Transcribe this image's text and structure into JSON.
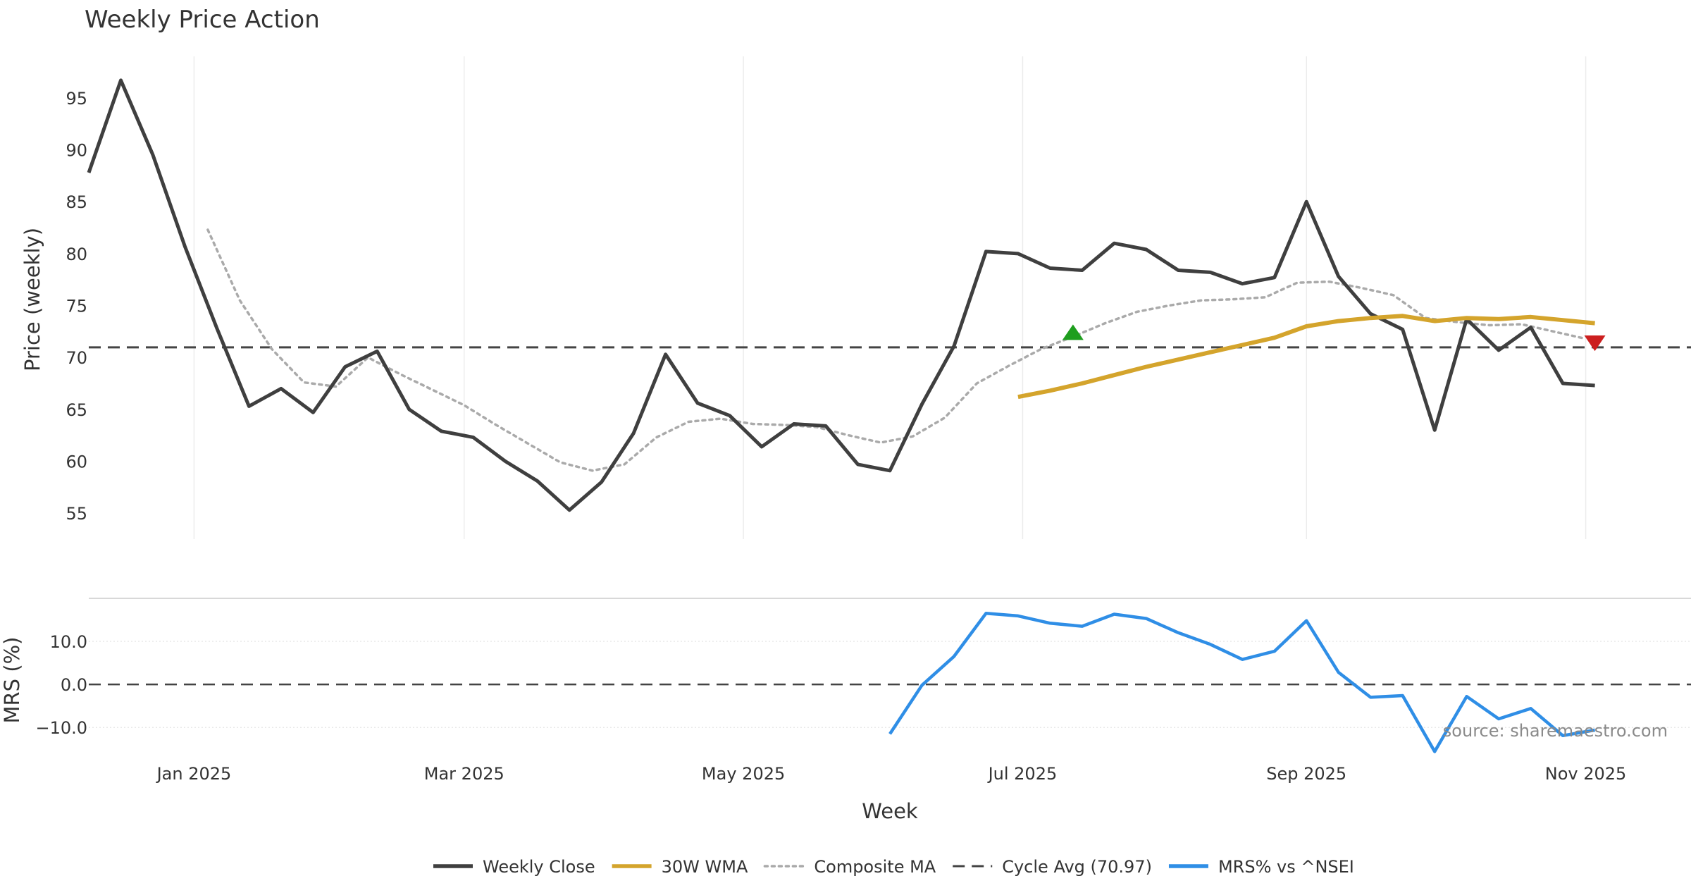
{
  "chart_data": {
    "type": "line",
    "title": "Weekly Price Action",
    "xlabel": "Week",
    "source_note": "source: sharemaestro.com",
    "colors": {
      "weekly_close": "#3f3f3f",
      "wma30": "#d4a42c",
      "composite": "#aaaaaa",
      "cycle": "#444444",
      "mrs": "#2f8ee6",
      "buy_marker": "#1e9e1e",
      "sell_marker": "#cc1f1f"
    },
    "x_ticks": [
      {
        "date": "2025-01-01",
        "label": "Jan 2025"
      },
      {
        "date": "2025-03-01",
        "label": "Mar 2025"
      },
      {
        "date": "2025-05-01",
        "label": "May 2025"
      },
      {
        "date": "2025-07-01",
        "label": "Jul 2025"
      },
      {
        "date": "2025-09-01",
        "label": "Sep 2025"
      },
      {
        "date": "2025-11-01",
        "label": "Nov 2025"
      }
    ],
    "x_range": [
      "2024-12-09",
      "2025-11-24"
    ],
    "price_panel": {
      "ylabel": "Price (weekly)",
      "ylim": [
        52.5,
        99
      ],
      "y_ticks": [
        55,
        60,
        65,
        70,
        75,
        80,
        85,
        90,
        95
      ],
      "cycle_avg": 70.97,
      "series": [
        {
          "key": "weekly_close",
          "name": "Weekly Close",
          "points": [
            [
              "2024-12-09",
              87.8
            ],
            [
              "2024-12-16",
              96.7
            ],
            [
              "2024-12-23",
              89.5
            ],
            [
              "2024-12-30",
              80.7
            ],
            [
              "2025-01-06",
              72.8
            ],
            [
              "2025-01-13",
              65.3
            ],
            [
              "2025-01-20",
              67.0
            ],
            [
              "2025-01-27",
              64.7
            ],
            [
              "2025-02-03",
              69.1
            ],
            [
              "2025-02-10",
              70.6
            ],
            [
              "2025-02-17",
              65.0
            ],
            [
              "2025-02-24",
              62.9
            ],
            [
              "2025-03-03",
              62.3
            ],
            [
              "2025-03-10",
              60.0
            ],
            [
              "2025-03-17",
              58.1
            ],
            [
              "2025-03-24",
              55.3
            ],
            [
              "2025-03-31",
              58.0
            ],
            [
              "2025-04-07",
              62.7
            ],
            [
              "2025-04-14",
              70.3
            ],
            [
              "2025-04-21",
              65.6
            ],
            [
              "2025-04-28",
              64.4
            ],
            [
              "2025-05-05",
              61.4
            ],
            [
              "2025-05-12",
              63.6
            ],
            [
              "2025-05-19",
              63.4
            ],
            [
              "2025-05-26",
              59.7
            ],
            [
              "2025-06-02",
              59.1
            ],
            [
              "2025-06-09",
              65.5
            ],
            [
              "2025-06-16",
              71.1
            ],
            [
              "2025-06-23",
              80.2
            ],
            [
              "2025-06-30",
              80.0
            ],
            [
              "2025-07-07",
              78.6
            ],
            [
              "2025-07-14",
              78.4
            ],
            [
              "2025-07-21",
              81.0
            ],
            [
              "2025-07-28",
              80.4
            ],
            [
              "2025-08-04",
              78.4
            ],
            [
              "2025-08-11",
              78.2
            ],
            [
              "2025-08-18",
              77.1
            ],
            [
              "2025-08-25",
              77.7
            ],
            [
              "2025-09-01",
              85.0
            ],
            [
              "2025-09-08",
              77.8
            ],
            [
              "2025-09-15",
              74.2
            ],
            [
              "2025-09-22",
              72.7
            ],
            [
              "2025-09-29",
              63.0
            ],
            [
              "2025-10-06",
              73.7
            ],
            [
              "2025-10-13",
              70.7
            ],
            [
              "2025-10-20",
              72.9
            ],
            [
              "2025-10-27",
              67.5
            ],
            [
              "2025-11-03",
              67.3
            ]
          ]
        },
        {
          "key": "wma30",
          "name": "30W WMA",
          "points": [
            [
              "2025-06-30",
              66.2
            ],
            [
              "2025-07-07",
              66.8
            ],
            [
              "2025-07-14",
              67.5
            ],
            [
              "2025-07-21",
              68.3
            ],
            [
              "2025-07-28",
              69.1
            ],
            [
              "2025-08-04",
              69.8
            ],
            [
              "2025-08-11",
              70.5
            ],
            [
              "2025-08-18",
              71.2
            ],
            [
              "2025-08-25",
              71.9
            ],
            [
              "2025-09-01",
              73.0
            ],
            [
              "2025-09-08",
              73.5
            ],
            [
              "2025-09-15",
              73.8
            ],
            [
              "2025-09-22",
              74.0
            ],
            [
              "2025-09-29",
              73.5
            ],
            [
              "2025-10-06",
              73.8
            ],
            [
              "2025-10-13",
              73.7
            ],
            [
              "2025-10-20",
              73.9
            ],
            [
              "2025-10-27",
              73.6
            ],
            [
              "2025-11-03",
              73.3
            ]
          ]
        },
        {
          "key": "composite",
          "name": "Composite MA",
          "points": [
            [
              "2025-01-04",
              82.3
            ],
            [
              "2025-01-11",
              75.5
            ],
            [
              "2025-01-18",
              70.8
            ],
            [
              "2025-01-25",
              67.6
            ],
            [
              "2025-02-01",
              67.2
            ],
            [
              "2025-02-08",
              70.0
            ],
            [
              "2025-02-15",
              68.4
            ],
            [
              "2025-02-22",
              66.9
            ],
            [
              "2025-03-01",
              65.4
            ],
            [
              "2025-03-08",
              63.5
            ],
            [
              "2025-03-15",
              61.7
            ],
            [
              "2025-03-22",
              59.9
            ],
            [
              "2025-03-29",
              59.1
            ],
            [
              "2025-04-05",
              59.7
            ],
            [
              "2025-04-12",
              62.3
            ],
            [
              "2025-04-19",
              63.8
            ],
            [
              "2025-04-26",
              64.1
            ],
            [
              "2025-05-03",
              63.6
            ],
            [
              "2025-05-10",
              63.5
            ],
            [
              "2025-05-17",
              63.3
            ],
            [
              "2025-05-24",
              62.5
            ],
            [
              "2025-05-31",
              61.8
            ],
            [
              "2025-06-07",
              62.4
            ],
            [
              "2025-06-14",
              64.2
            ],
            [
              "2025-06-21",
              67.5
            ],
            [
              "2025-06-28",
              69.2
            ],
            [
              "2025-07-05",
              70.8
            ],
            [
              "2025-07-12",
              72.0
            ],
            [
              "2025-07-19",
              73.3
            ],
            [
              "2025-07-26",
              74.4
            ],
            [
              "2025-08-02",
              75.0
            ],
            [
              "2025-08-09",
              75.5
            ],
            [
              "2025-08-16",
              75.6
            ],
            [
              "2025-08-23",
              75.8
            ],
            [
              "2025-08-30",
              77.2
            ],
            [
              "2025-09-06",
              77.3
            ],
            [
              "2025-09-13",
              76.7
            ],
            [
              "2025-09-20",
              76.0
            ],
            [
              "2025-09-27",
              73.8
            ],
            [
              "2025-10-04",
              73.4
            ],
            [
              "2025-10-11",
              73.1
            ],
            [
              "2025-10-18",
              73.2
            ],
            [
              "2025-10-25",
              72.5
            ],
            [
              "2025-11-01",
              71.8
            ]
          ]
        }
      ],
      "markers": [
        {
          "type": "buy",
          "shape": "triangle-up",
          "date": "2025-07-12",
          "value": 72.3
        },
        {
          "type": "sell",
          "shape": "triangle-down",
          "date": "2025-11-03",
          "value": 71.5
        }
      ]
    },
    "mrs_panel": {
      "ylabel": "MRS (%)",
      "ylim": [
        -17,
        19
      ],
      "y_ticks": [
        -10,
        0,
        10
      ],
      "y_tick_labels": [
        "−10.0",
        "0.0",
        "10.0"
      ],
      "series": [
        {
          "key": "mrs",
          "name": "MRS% vs ^NSEI",
          "points": [
            [
              "2025-06-02",
              -11.5
            ],
            [
              "2025-06-09",
              -0.2
            ],
            [
              "2025-06-16",
              6.5
            ],
            [
              "2025-06-23",
              16.5
            ],
            [
              "2025-06-30",
              15.9
            ],
            [
              "2025-07-07",
              14.2
            ],
            [
              "2025-07-14",
              13.5
            ],
            [
              "2025-07-21",
              16.3
            ],
            [
              "2025-07-28",
              15.3
            ],
            [
              "2025-08-04",
              12.0
            ],
            [
              "2025-08-11",
              9.3
            ],
            [
              "2025-08-18",
              5.8
            ],
            [
              "2025-08-25",
              7.7
            ],
            [
              "2025-09-01",
              14.8
            ],
            [
              "2025-09-08",
              2.8
            ],
            [
              "2025-09-15",
              -3.0
            ],
            [
              "2025-09-22",
              -2.6
            ],
            [
              "2025-09-29",
              -15.6
            ],
            [
              "2025-10-06",
              -2.8
            ],
            [
              "2025-10-13",
              -8.0
            ],
            [
              "2025-10-20",
              -5.6
            ],
            [
              "2025-10-27",
              -11.9
            ],
            [
              "2025-11-03",
              -10.6
            ]
          ]
        }
      ]
    },
    "legend": [
      {
        "key": "weekly_close",
        "label": "Weekly Close",
        "style": "solid"
      },
      {
        "key": "wma30",
        "label": "30W WMA",
        "style": "solid"
      },
      {
        "key": "composite",
        "label": "Composite MA",
        "style": "dotted"
      },
      {
        "key": "cycle",
        "label": "Cycle Avg (70.97)",
        "style": "dashed"
      },
      {
        "key": "mrs",
        "label": "MRS% vs ^NSEI",
        "style": "solid"
      }
    ]
  }
}
